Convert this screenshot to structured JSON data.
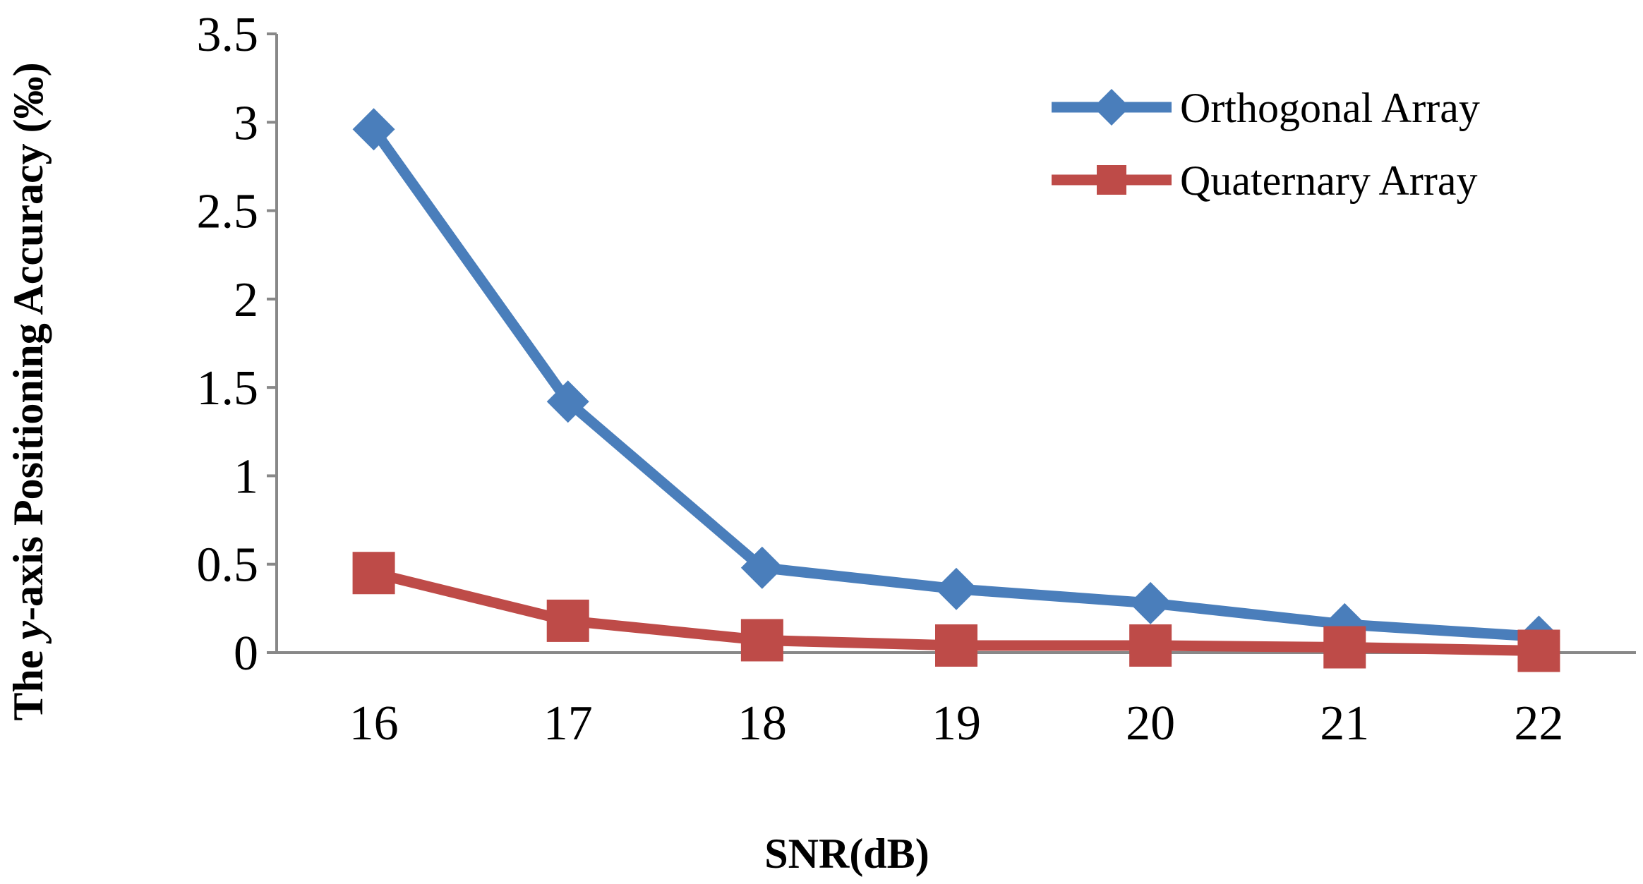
{
  "chart_data": {
    "type": "line",
    "x": [
      16,
      17,
      18,
      19,
      20,
      21,
      22
    ],
    "xlabel": "SNR(dB)",
    "ylabel": {
      "prefix": "The ",
      "italic": "y",
      "suffix": "-axis Positioning Accuracy (‰)"
    },
    "ylim": [
      0,
      3.5
    ],
    "yticks": [
      "0",
      "0.5",
      "1",
      "1.5",
      "2",
      "2.5",
      "3",
      "3.5"
    ],
    "xticks": [
      "16",
      "17",
      "18",
      "19",
      "20",
      "21",
      "22"
    ],
    "grid": false,
    "legend_position": "top-right",
    "series": [
      {
        "name": "Orthogonal Array",
        "marker": "diamond",
        "color": "#4a7ebb",
        "values": [
          2.96,
          1.42,
          0.48,
          0.36,
          0.28,
          0.16,
          0.09
        ]
      },
      {
        "name": "Quaternary Array",
        "marker": "square",
        "color": "#be4b48",
        "values": [
          0.45,
          0.18,
          0.07,
          0.04,
          0.04,
          0.03,
          0.01
        ]
      }
    ]
  }
}
